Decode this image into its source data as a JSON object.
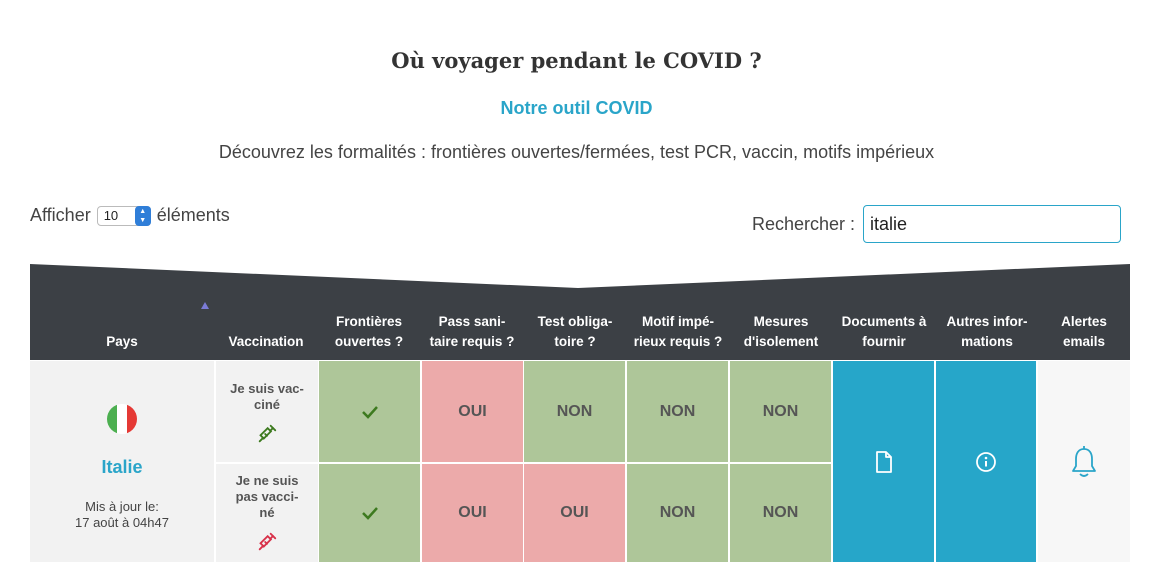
{
  "page": {
    "title": "Où voyager pendant le COVID ?",
    "subtitle": "Notre outil COVID",
    "description": "Découvrez les formalités : frontières ouvertes/fermées, test PCR, vaccin, motifs impérieux"
  },
  "controls": {
    "show_label": "Afficher",
    "page_length": "10",
    "elements_label": "éléments",
    "search_label": "Rechercher :",
    "search_value": "italie"
  },
  "table": {
    "headers": {
      "country": "Pays",
      "vaccination": "Vaccination",
      "borders_1": "Frontières",
      "borders_2": "ouvertes ?",
      "pass_1": "Pass sani-",
      "pass_2": "taire requis ?",
      "test_1": "Test obliga-",
      "test_2": "toire ?",
      "motif_1": "Motif impé-",
      "motif_2": "rieux requis ?",
      "isolation_1": "Mesures",
      "isolation_2": "d'isolement",
      "docs_1": "Documents à",
      "docs_2": "fournir",
      "info_1": "Autres infor-",
      "info_2": "mations",
      "alerts_1": "Alertes",
      "alerts_2": "emails"
    },
    "country": {
      "name": "Italie",
      "updated_1": "Mis à jour le:",
      "updated_2": "17 août à 04h47",
      "flag_colors": [
        "#4caf50",
        "#ffffff",
        "#e53935"
      ]
    },
    "rows": [
      {
        "vaccination_1": "Je suis vac-",
        "vaccination_2": "ciné",
        "vaccination_3": "",
        "syringe_color": "#3d7a1f",
        "pass": "OUI",
        "test": "NON",
        "motif": "NON",
        "isolation": "NON"
      },
      {
        "vaccination_1": "Je ne suis",
        "vaccination_2": "pas vacci-",
        "vaccination_3": "né",
        "syringe_color": "#d8324a",
        "pass": "OUI",
        "test": "OUI",
        "motif": "NON",
        "isolation": "NON"
      }
    ]
  },
  "icons": {
    "check": "check-icon",
    "document": "document-icon",
    "info": "info-icon",
    "bell": "bell-icon",
    "syringe": "syringe-icon"
  },
  "colors": {
    "accent": "#2aa5c9",
    "header_bg": "#3c4045",
    "yes_bg": "#ecaaaa",
    "no_bg": "#aec699",
    "action_bg": "#26a6c9"
  }
}
